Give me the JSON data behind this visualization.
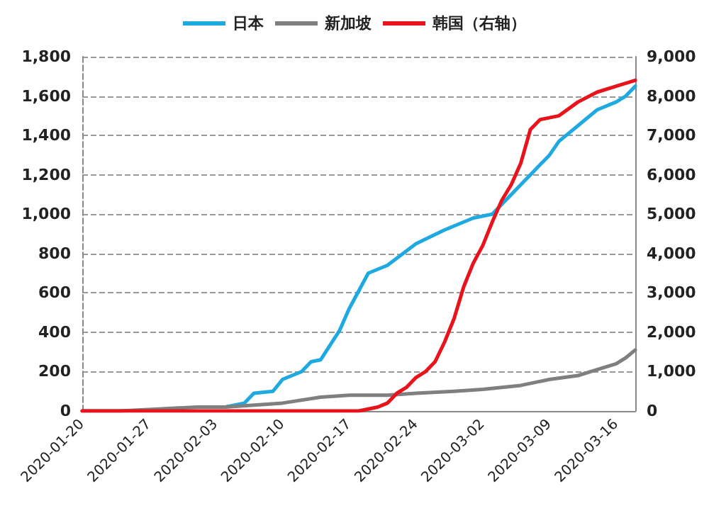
{
  "chart_data": {
    "type": "line",
    "xlim": [
      "2020-01-20",
      "2020-03-18"
    ],
    "xticks": [
      "2020-01-20",
      "2020-01-27",
      "2020-02-03",
      "2020-02-10",
      "2020-02-17",
      "2020-02-24",
      "2020-03-02",
      "2020-03-09",
      "2020-03-16"
    ],
    "ylim": [
      0,
      1800
    ],
    "yticks": [
      0,
      200,
      400,
      600,
      800,
      {
        "value": 1000,
        "label": "1,000"
      },
      {
        "value": 1200,
        "label": "1,200"
      },
      {
        "value": 1400,
        "label": "1,400"
      },
      {
        "value": 1600,
        "label": "1,600"
      },
      {
        "value": 1800,
        "label": "1,800"
      }
    ],
    "y2lim": [
      0,
      9000
    ],
    "y2ticks": [
      0,
      {
        "value": 1000,
        "label": "1,000"
      },
      {
        "value": 2000,
        "label": "2,000"
      },
      {
        "value": 3000,
        "label": "3,000"
      },
      {
        "value": 4000,
        "label": "4,000"
      },
      {
        "value": 5000,
        "label": "5,000"
      },
      {
        "value": 6000,
        "label": "6,000"
      },
      {
        "value": 7000,
        "label": "7,000"
      },
      {
        "value": 8000,
        "label": "8,000"
      },
      {
        "value": 9000,
        "label": "9,000"
      }
    ],
    "grid": "y",
    "legend": "top",
    "marker": "none",
    "line_style": "solid",
    "series": [
      {
        "name": "日本",
        "color": "#1fa9e1",
        "x": [
          "2020-02-01",
          "2020-02-04",
          "2020-02-06",
          "2020-02-07",
          "2020-02-09",
          "2020-02-10",
          "2020-02-12",
          "2020-02-13",
          "2020-02-14",
          "2020-02-16",
          "2020-02-17",
          "2020-02-19",
          "2020-02-21",
          "2020-02-24",
          "2020-02-27",
          "2020-03-01",
          "2020-03-03",
          "2020-03-05",
          "2020-03-07",
          "2020-03-09",
          "2020-03-10",
          "2020-03-12",
          "2020-03-14",
          "2020-03-16",
          "2020-03-17",
          "2020-03-18"
        ],
        "values": [
          20,
          20,
          40,
          90,
          100,
          160,
          200,
          250,
          260,
          410,
          520,
          700,
          740,
          850,
          920,
          980,
          1000,
          1100,
          1200,
          1300,
          1370,
          1450,
          1530,
          1570,
          1600,
          1650
        ]
      },
      {
        "name": "新加坡",
        "color": "#7f7f7f",
        "x": [
          "2020-01-20",
          "2020-01-24",
          "2020-01-28",
          "2020-02-01",
          "2020-02-04",
          "2020-02-07",
          "2020-02-10",
          "2020-02-14",
          "2020-02-17",
          "2020-02-21",
          "2020-02-24",
          "2020-02-28",
          "2020-03-02",
          "2020-03-06",
          "2020-03-09",
          "2020-03-12",
          "2020-03-14",
          "2020-03-16",
          "2020-03-17",
          "2020-03-18"
        ],
        "values": [
          0,
          0,
          10,
          20,
          20,
          30,
          40,
          70,
          80,
          80,
          90,
          100,
          110,
          130,
          160,
          180,
          210,
          240,
          270,
          310
        ]
      },
      {
        "name": "韩国（右轴）",
        "color": "#e8131b",
        "axis": "y2",
        "x": [
          "2020-01-20",
          "2020-01-28",
          "2020-02-05",
          "2020-02-12",
          "2020-02-18",
          "2020-02-19",
          "2020-02-20",
          "2020-02-21",
          "2020-02-22",
          "2020-02-23",
          "2020-02-24",
          "2020-02-25",
          "2020-02-26",
          "2020-02-27",
          "2020-02-28",
          "2020-02-29",
          "2020-03-01",
          "2020-03-02",
          "2020-03-03",
          "2020-03-04",
          "2020-03-05",
          "2020-03-06",
          "2020-03-07",
          "2020-03-08",
          "2020-03-10",
          "2020-03-12",
          "2020-03-14",
          "2020-03-16",
          "2020-03-18"
        ],
        "values": [
          0,
          0,
          0,
          0,
          0,
          50,
          100,
          200,
          450,
          600,
          850,
          1000,
          1250,
          1750,
          2350,
          3150,
          3750,
          4200,
          4800,
          5350,
          5750,
          6300,
          7150,
          7400,
          7500,
          7850,
          8100,
          8250,
          8400
        ]
      }
    ]
  }
}
